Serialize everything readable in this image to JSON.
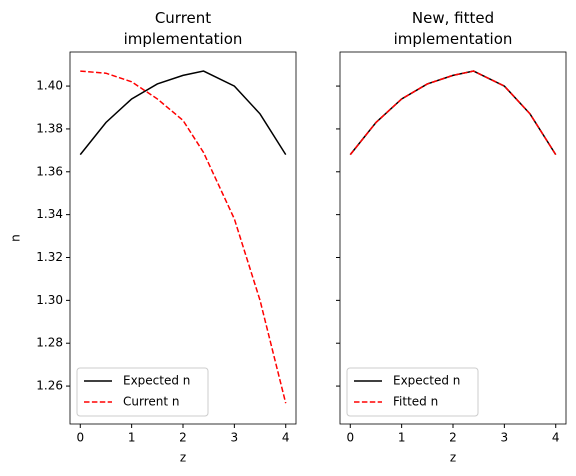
{
  "chart_data": [
    {
      "type": "line",
      "title": "Current\nimplementation",
      "xlabel": "z",
      "ylabel": "n",
      "x": [
        0,
        0.5,
        1,
        1.5,
        2,
        2.4,
        3,
        3.5,
        4
      ],
      "series": [
        {
          "name": "Expected n",
          "color": "#000000",
          "linestyle": "solid",
          "values": [
            1.368,
            1.383,
            1.394,
            1.401,
            1.405,
            1.407,
            1.4,
            1.387,
            1.368
          ]
        },
        {
          "name": "Current n",
          "color": "#ff0000",
          "linestyle": "dashed",
          "values": [
            1.407,
            1.406,
            1.402,
            1.394,
            1.384,
            1.369,
            1.338,
            1.3,
            1.252
          ]
        }
      ],
      "xlim": [
        -0.2,
        4.2
      ],
      "ylim": [
        1.2423,
        1.4159
      ],
      "xticks": [
        0,
        1,
        2,
        3,
        4
      ],
      "yticks": [
        {
          "value": 1.26,
          "label": "1.26"
        },
        {
          "value": 1.28,
          "label": "1.28"
        },
        {
          "value": 1.3,
          "label": "1.30"
        },
        {
          "value": 1.32,
          "label": "1.32"
        },
        {
          "value": 1.34,
          "label": "1.34"
        },
        {
          "value": 1.36,
          "label": "1.36"
        },
        {
          "value": 1.38,
          "label": "1.38"
        },
        {
          "value": 1.4,
          "label": "1.40"
        }
      ],
      "legend": "lower left"
    },
    {
      "type": "line",
      "title": "New, fitted\nimplementation",
      "xlabel": "z",
      "sharey": true,
      "x": [
        0,
        0.5,
        1,
        1.5,
        2,
        2.4,
        3,
        3.5,
        4
      ],
      "series": [
        {
          "name": "Expected n",
          "color": "#000000",
          "linestyle": "solid",
          "values": [
            1.368,
            1.383,
            1.394,
            1.401,
            1.405,
            1.407,
            1.4,
            1.387,
            1.368
          ]
        },
        {
          "name": "Fitted n",
          "color": "#ff0000",
          "linestyle": "dashed",
          "values": [
            1.368,
            1.383,
            1.394,
            1.401,
            1.405,
            1.407,
            1.4,
            1.387,
            1.368
          ]
        }
      ],
      "xlim": [
        -0.2,
        4.2
      ],
      "xticks": [
        0,
        1,
        2,
        3,
        4
      ],
      "legend": "lower left"
    }
  ]
}
